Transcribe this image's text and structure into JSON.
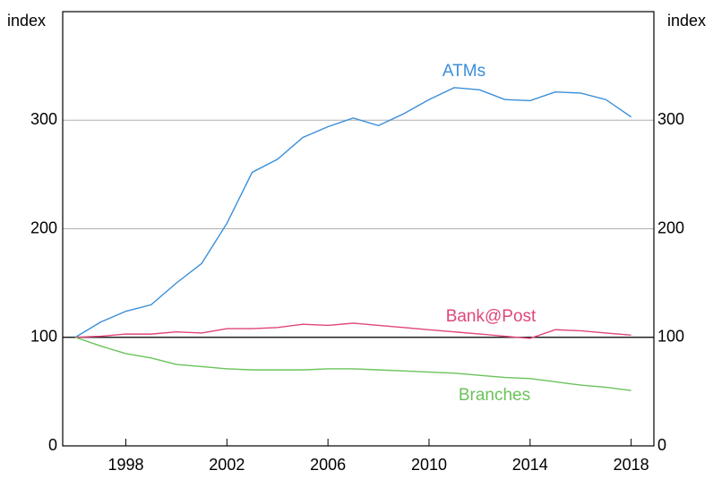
{
  "chart_data": {
    "type": "line",
    "ylabel": "index",
    "y2label": "index",
    "x": [
      1996,
      1997,
      1998,
      1999,
      2000,
      2001,
      2002,
      2003,
      2004,
      2005,
      2006,
      2007,
      2008,
      2009,
      2010,
      2011,
      2012,
      2013,
      2014,
      2015,
      2016,
      2017,
      2018
    ],
    "series": [
      {
        "name": "ATMs",
        "color": "#3a8fd9",
        "values": [
          100,
          114,
          124,
          130,
          150,
          168,
          205,
          252,
          264,
          284,
          294,
          302,
          295,
          306,
          319,
          330,
          328,
          319,
          318,
          326,
          325,
          319,
          303
        ]
      },
      {
        "name": "Bank@Post",
        "color": "#e0457b",
        "values": [
          100,
          101,
          103,
          103,
          105,
          104,
          108,
          108,
          109,
          112,
          111,
          113,
          111,
          109,
          107,
          105,
          103,
          101,
          99,
          107,
          106,
          104,
          102
        ]
      },
      {
        "name": "Branches",
        "color": "#6ac35a",
        "values": [
          100,
          92,
          85,
          81,
          75,
          73,
          71,
          70,
          70,
          70,
          71,
          71,
          70,
          69,
          68,
          67,
          65,
          63,
          62,
          59,
          56,
          54,
          51
        ]
      }
    ],
    "xlim": [
      1995.5,
      2018.9
    ],
    "xticks": [
      1998,
      2002,
      2006,
      2010,
      2014,
      2018
    ],
    "ylim": [
      0,
      400
    ],
    "yticks": [
      0,
      100,
      200,
      300
    ],
    "y2lim": [
      0,
      400
    ],
    "y2ticks": [
      0,
      100,
      200,
      300
    ],
    "reference_line": 100,
    "grid": true
  }
}
